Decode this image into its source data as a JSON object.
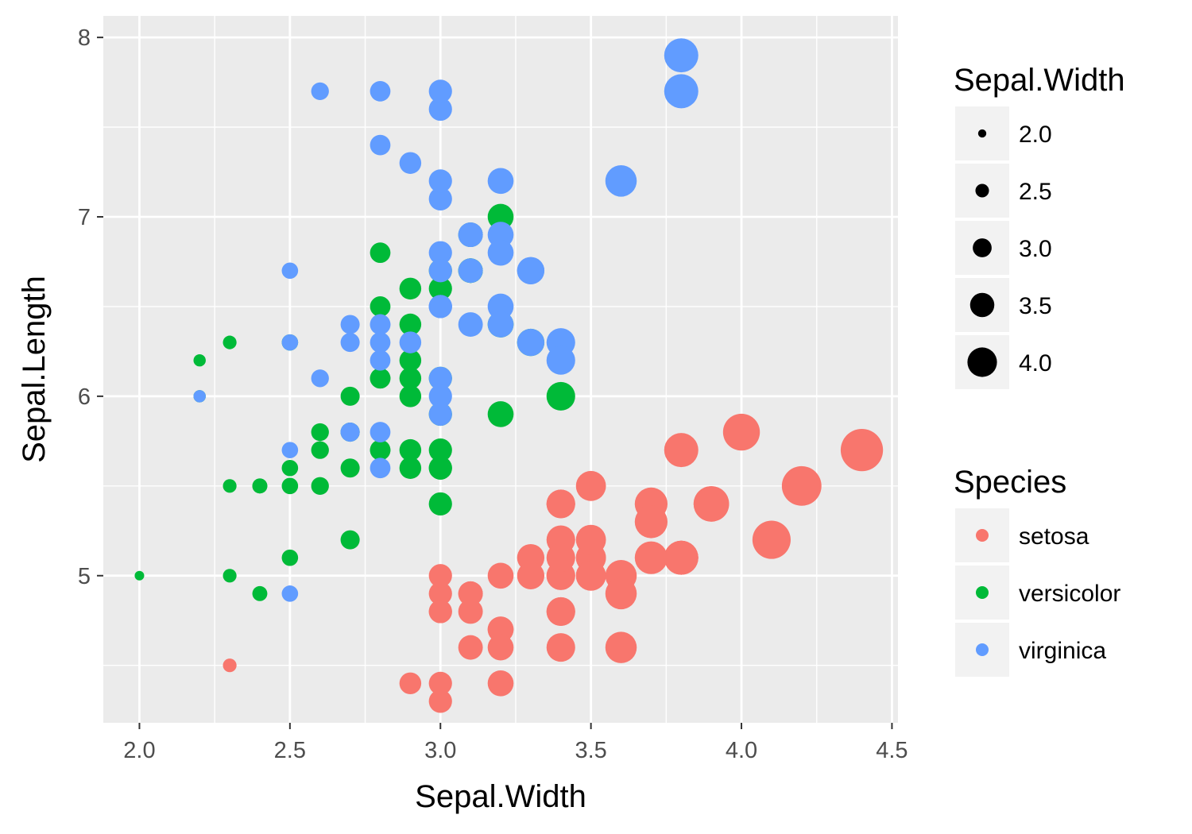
{
  "chart_data": {
    "type": "scatter",
    "xlabel": "Sepal.Width",
    "ylabel": "Sepal.Length",
    "xlim": [
      1.88,
      4.52
    ],
    "ylim": [
      4.18,
      8.12
    ],
    "x_ticks": [
      "2.0",
      "2.5",
      "3.0",
      "3.5",
      "4.0",
      "4.5"
    ],
    "x_tick_values": [
      2.0,
      2.5,
      3.0,
      3.5,
      4.0,
      4.5
    ],
    "y_ticks": [
      "5",
      "6",
      "7",
      "8"
    ],
    "y_tick_values": [
      5,
      6,
      7,
      8
    ],
    "grid": true,
    "panel_background": "#ebebeb",
    "size_legend": {
      "title": "Sepal.Width",
      "labels": [
        "2.0",
        "2.5",
        "3.0",
        "3.5",
        "4.0"
      ],
      "values": [
        2.0,
        2.5,
        3.0,
        3.5,
        4.0
      ],
      "color": "#000000"
    },
    "color_legend": {
      "title": "Species",
      "labels": [
        "setosa",
        "versicolor",
        "virginica"
      ],
      "colors": [
        "#F8766D",
        "#00BA38",
        "#619CFF"
      ]
    },
    "series": [
      {
        "name": "setosa",
        "color": "#F8766D",
        "points": [
          [
            3.5,
            5.1
          ],
          [
            3.0,
            4.9
          ],
          [
            3.2,
            4.7
          ],
          [
            3.1,
            4.6
          ],
          [
            3.6,
            5.0
          ],
          [
            3.9,
            5.4
          ],
          [
            3.4,
            4.6
          ],
          [
            3.4,
            5.0
          ],
          [
            2.9,
            4.4
          ],
          [
            3.1,
            4.9
          ],
          [
            3.7,
            5.4
          ],
          [
            3.4,
            4.8
          ],
          [
            3.0,
            4.8
          ],
          [
            3.0,
            4.3
          ],
          [
            4.0,
            5.8
          ],
          [
            4.4,
            5.7
          ],
          [
            3.9,
            5.4
          ],
          [
            3.5,
            5.1
          ],
          [
            3.8,
            5.7
          ],
          [
            3.8,
            5.1
          ],
          [
            3.4,
            5.4
          ],
          [
            3.7,
            5.1
          ],
          [
            3.6,
            4.6
          ],
          [
            3.3,
            5.1
          ],
          [
            3.4,
            4.8
          ],
          [
            3.0,
            5.0
          ],
          [
            3.4,
            5.0
          ],
          [
            3.5,
            5.2
          ],
          [
            3.4,
            5.2
          ],
          [
            3.2,
            4.7
          ],
          [
            3.1,
            4.8
          ],
          [
            3.4,
            5.4
          ],
          [
            4.1,
            5.2
          ],
          [
            4.2,
            5.5
          ],
          [
            3.1,
            4.9
          ],
          [
            3.2,
            5.0
          ],
          [
            3.5,
            5.5
          ],
          [
            3.6,
            4.9
          ],
          [
            3.0,
            4.4
          ],
          [
            3.4,
            5.1
          ],
          [
            3.5,
            5.0
          ],
          [
            2.3,
            4.5
          ],
          [
            3.2,
            4.4
          ],
          [
            3.5,
            5.0
          ],
          [
            3.8,
            5.1
          ],
          [
            3.0,
            4.8
          ],
          [
            3.8,
            5.1
          ],
          [
            3.2,
            4.6
          ],
          [
            3.7,
            5.3
          ],
          [
            3.3,
            5.0
          ]
        ]
      },
      {
        "name": "versicolor",
        "color": "#00BA38",
        "points": [
          [
            3.2,
            7.0
          ],
          [
            3.2,
            6.4
          ],
          [
            3.1,
            6.9
          ],
          [
            2.3,
            5.5
          ],
          [
            2.8,
            6.5
          ],
          [
            2.8,
            5.7
          ],
          [
            3.3,
            6.3
          ],
          [
            2.4,
            4.9
          ],
          [
            2.9,
            6.6
          ],
          [
            2.7,
            5.2
          ],
          [
            2.0,
            5.0
          ],
          [
            3.0,
            5.9
          ],
          [
            2.2,
            6.0
          ],
          [
            2.9,
            6.1
          ],
          [
            2.9,
            5.6
          ],
          [
            3.1,
            6.7
          ],
          [
            3.0,
            5.6
          ],
          [
            2.7,
            5.8
          ],
          [
            2.2,
            6.2
          ],
          [
            2.5,
            5.6
          ],
          [
            3.2,
            5.9
          ],
          [
            2.8,
            6.1
          ],
          [
            2.5,
            6.3
          ],
          [
            2.8,
            6.1
          ],
          [
            2.9,
            6.4
          ],
          [
            3.0,
            6.6
          ],
          [
            2.8,
            6.8
          ],
          [
            3.0,
            6.7
          ],
          [
            2.9,
            6.0
          ],
          [
            2.6,
            5.7
          ],
          [
            2.4,
            5.5
          ],
          [
            2.4,
            5.5
          ],
          [
            2.7,
            5.8
          ],
          [
            2.7,
            6.0
          ],
          [
            3.0,
            5.4
          ],
          [
            3.4,
            6.0
          ],
          [
            3.1,
            6.7
          ],
          [
            2.3,
            6.3
          ],
          [
            3.0,
            5.6
          ],
          [
            2.5,
            5.5
          ],
          [
            2.6,
            5.5
          ],
          [
            3.0,
            6.1
          ],
          [
            2.6,
            5.8
          ],
          [
            2.3,
            5.0
          ],
          [
            2.7,
            5.6
          ],
          [
            3.0,
            5.7
          ],
          [
            2.9,
            5.7
          ],
          [
            2.9,
            6.2
          ],
          [
            2.5,
            5.1
          ],
          [
            2.8,
            5.7
          ]
        ]
      },
      {
        "name": "virginica",
        "color": "#619CFF",
        "points": [
          [
            3.3,
            6.3
          ],
          [
            2.7,
            5.8
          ],
          [
            3.0,
            7.1
          ],
          [
            2.9,
            6.3
          ],
          [
            3.0,
            6.5
          ],
          [
            3.0,
            7.6
          ],
          [
            2.5,
            4.9
          ],
          [
            2.9,
            7.3
          ],
          [
            2.5,
            6.7
          ],
          [
            3.6,
            7.2
          ],
          [
            3.2,
            6.5
          ],
          [
            2.7,
            6.4
          ],
          [
            3.0,
            6.8
          ],
          [
            2.5,
            5.7
          ],
          [
            2.8,
            5.8
          ],
          [
            3.2,
            6.4
          ],
          [
            3.0,
            6.5
          ],
          [
            3.8,
            7.7
          ],
          [
            2.6,
            7.7
          ],
          [
            2.2,
            6.0
          ],
          [
            3.2,
            6.9
          ],
          [
            2.8,
            5.6
          ],
          [
            2.8,
            7.7
          ],
          [
            2.7,
            6.3
          ],
          [
            3.3,
            6.7
          ],
          [
            3.2,
            7.2
          ],
          [
            2.8,
            6.2
          ],
          [
            3.0,
            6.1
          ],
          [
            2.8,
            6.4
          ],
          [
            3.0,
            7.2
          ],
          [
            2.8,
            7.4
          ],
          [
            3.8,
            7.9
          ],
          [
            2.8,
            6.4
          ],
          [
            2.8,
            6.3
          ],
          [
            2.6,
            6.1
          ],
          [
            3.0,
            7.7
          ],
          [
            3.4,
            6.3
          ],
          [
            3.1,
            6.4
          ],
          [
            3.0,
            6.0
          ],
          [
            3.1,
            6.9
          ],
          [
            3.1,
            6.7
          ],
          [
            3.1,
            6.9
          ],
          [
            2.7,
            5.8
          ],
          [
            3.2,
            6.8
          ],
          [
            3.3,
            6.7
          ],
          [
            3.0,
            6.7
          ],
          [
            2.5,
            6.3
          ],
          [
            3.0,
            6.5
          ],
          [
            3.4,
            6.2
          ],
          [
            3.0,
            5.9
          ]
        ]
      }
    ]
  }
}
